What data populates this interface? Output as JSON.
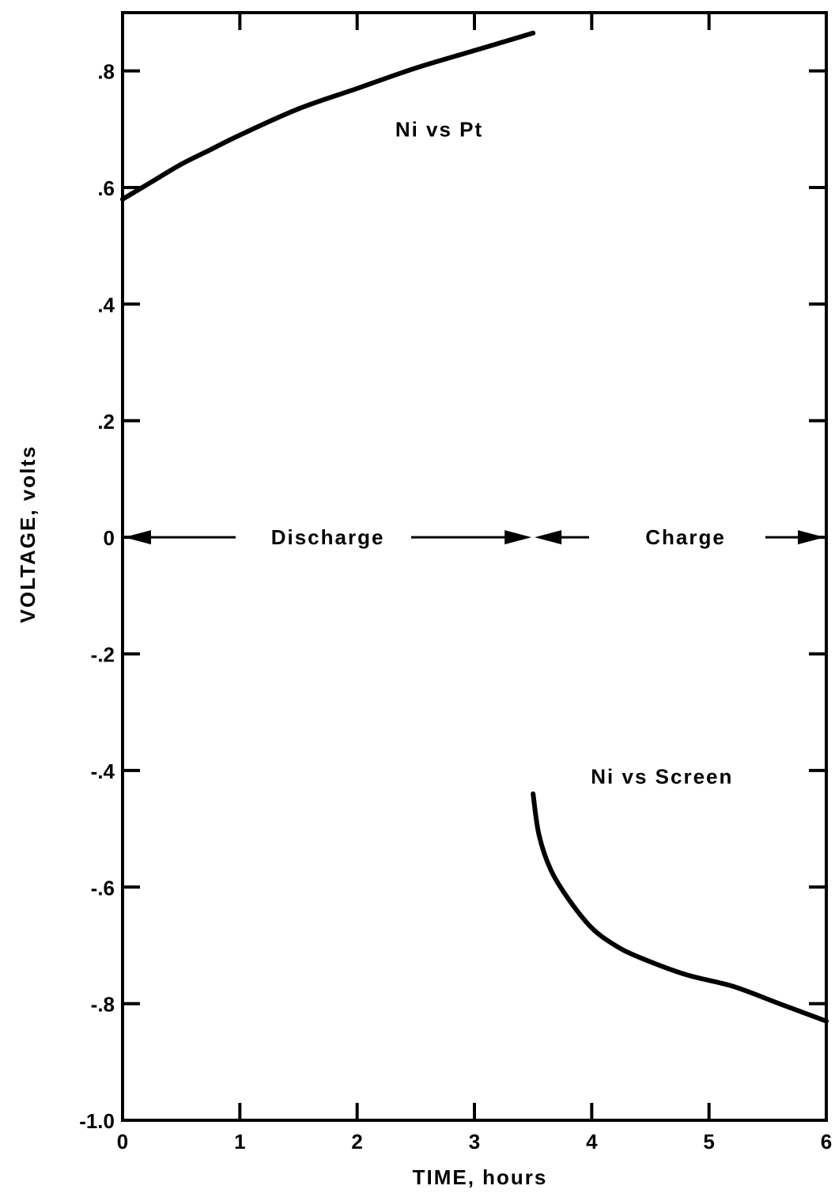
{
  "chart_data": {
    "type": "line",
    "title": "",
    "xlabel": "TIME, hours",
    "ylabel": "VOLTAGE, volts",
    "xlim": [
      0,
      6
    ],
    "ylim": [
      -1.0,
      0.9
    ],
    "grid": false,
    "x_ticks": [
      0,
      1,
      2,
      3,
      4,
      5,
      6
    ],
    "x_tick_labels": [
      "0",
      "1",
      "2",
      "3",
      "4",
      "5",
      "6"
    ],
    "y_ticks": [
      -1.0,
      -0.8,
      -0.6,
      -0.4,
      -0.2,
      0,
      0.2,
      0.4,
      0.6,
      0.8
    ],
    "y_tick_labels": [
      "-1.0",
      "-.8",
      "-.6",
      "-.4",
      "-.2",
      "0",
      ".2",
      ".4",
      ".6",
      ".8"
    ],
    "series": [
      {
        "name": "Ni vs Pt",
        "x": [
          0,
          0.25,
          0.5,
          0.75,
          1.0,
          1.5,
          2.0,
          2.5,
          3.0,
          3.5
        ],
        "y": [
          0.58,
          0.61,
          0.64,
          0.665,
          0.69,
          0.735,
          0.77,
          0.805,
          0.835,
          0.865
        ]
      },
      {
        "name": "Ni vs Screen",
        "x": [
          3.5,
          3.55,
          3.65,
          3.8,
          4.0,
          4.2,
          4.4,
          4.8,
          5.2,
          5.6,
          6.0
        ],
        "y": [
          -0.44,
          -0.51,
          -0.57,
          -0.62,
          -0.67,
          -0.7,
          -0.72,
          -0.75,
          -0.77,
          -0.8,
          -0.83
        ]
      }
    ],
    "annotations": [
      {
        "text": "Ni vs Pt",
        "x": 2.7,
        "y": 0.7
      },
      {
        "text": "Ni vs Screen",
        "x": 4.6,
        "y": -0.41
      },
      {
        "text": "Discharge",
        "x": 1.75,
        "y": 0
      },
      {
        "text": "Charge",
        "x": 4.8,
        "y": 0
      }
    ],
    "regions": [
      {
        "label": "Discharge",
        "from": 0,
        "to": 3.5,
        "y": 0
      },
      {
        "label": "Charge",
        "from": 3.5,
        "to": 6,
        "y": 0
      }
    ]
  }
}
